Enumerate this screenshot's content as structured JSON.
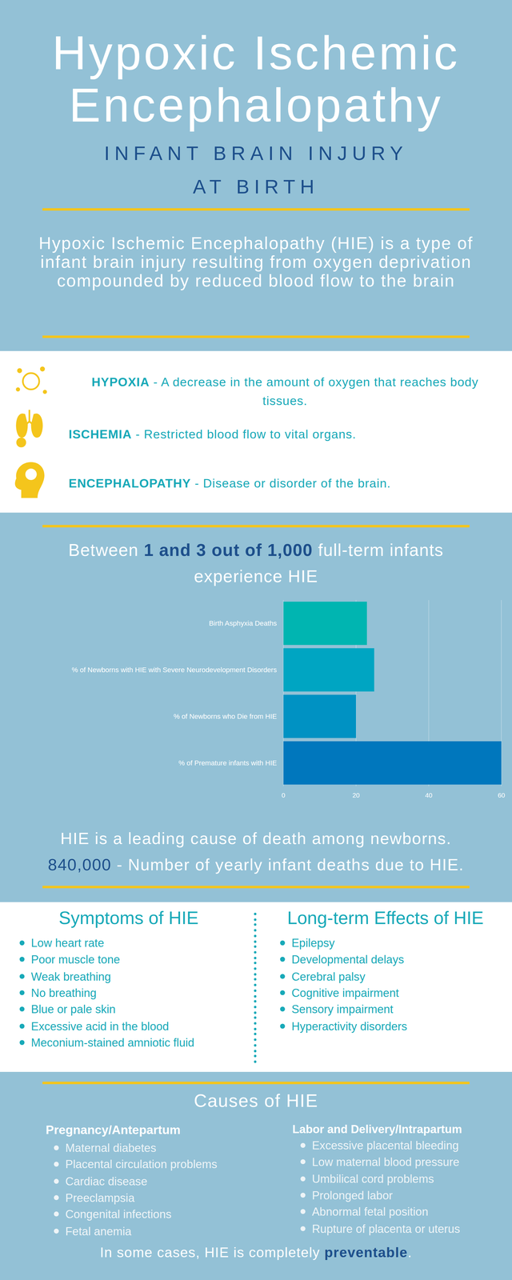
{
  "header": {
    "title_lines": [
      "Hypoxic Ischemic",
      "Encephalopathy"
    ],
    "subtitle_lines": [
      "INFANT BRAIN INJURY",
      "AT BIRTH"
    ],
    "intro": "Hypoxic Ischemic Encephalopathy (HIE) is a type of infant brain injury resulting from oxygen deprivation compounded by reduced blood flow to the brain"
  },
  "definitions": [
    {
      "term": "HYPOXIA",
      "definition": "- A decrease in the amount of oxygen that reaches body tissues."
    },
    {
      "term": "ISCHEMIA",
      "definition": "- Restricted blood flow to vital organs."
    },
    {
      "term": "ENCEPHALOPATHY",
      "definition": "- Disease or disorder of the brain."
    }
  ],
  "stat": {
    "before": "Between ",
    "highlight": "1 and 3 out of 1,000",
    "after": " full-term infants experience HIE"
  },
  "chart_data": {
    "type": "bar",
    "orientation": "horizontal",
    "categories": [
      "Birth Asphyxia Deaths",
      "% of Newborns with HIE with Severe Neurodevelopment Disorders",
      "% of Newborns who Die from HIE",
      "% of Premature infants with HIE"
    ],
    "values": [
      23,
      25,
      20,
      60
    ],
    "colors": [
      "#00b5b1",
      "#00a5c2",
      "#0092c3",
      "#0077bd"
    ],
    "xlim": [
      0,
      60
    ],
    "xticks": [
      0,
      20,
      40,
      60
    ],
    "grid": true
  },
  "deaths": {
    "line1": "HIE is a leading cause of death among newborns.",
    "number": "840,000",
    "text": " - Number of yearly infant deaths due to HIE."
  },
  "symptoms": {
    "title": "Symptoms of HIE",
    "items": [
      "Low heart rate",
      "Poor muscle tone",
      "Weak breathing",
      "No breathing",
      "Blue or pale skin",
      "Excessive acid in the blood",
      "Meconium-stained amniotic fluid"
    ]
  },
  "effects": {
    "title": "Long-term Effects of HIE",
    "items": [
      "Epilepsy",
      "Developmental delays",
      "Cerebral palsy",
      "Cognitive impairment",
      "Sensory impairment",
      "Hyperactivity disorders"
    ]
  },
  "causes": {
    "title": "Causes of HIE",
    "antepartum": {
      "title": "Pregnancy/Antepartum",
      "items": [
        "Maternal diabetes",
        "Placental circulation problems",
        "Cardiac disease",
        "Preeclampsia",
        "Congenital infections",
        "Fetal anemia"
      ]
    },
    "intrapartum": {
      "title": "Labor and Delivery/Intrapartum",
      "items": [
        "Excessive placental bleeding",
        "Low maternal blood pressure",
        "Umbilical cord problems",
        "Prolonged labor",
        "Abnormal fetal position",
        "Rupture of placenta or uterus"
      ]
    }
  },
  "footer": {
    "before": "In some cases, HIE is completely ",
    "highlight": "preventable",
    "after": "."
  }
}
